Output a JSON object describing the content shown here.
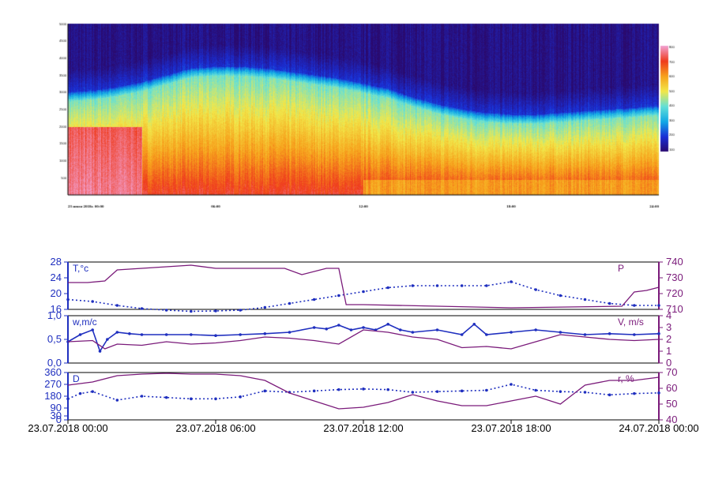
{
  "colors": {
    "T": "#1f2fbf",
    "P": "#7a1a7a",
    "w": "#1f2fbf",
    "V": "#7a1a7a",
    "D": "#1f2fbf",
    "r": "#7a1a7a",
    "axis_left": "#1f2fbf",
    "axis_right": "#7a1a7a"
  },
  "chart_data": [
    {
      "type": "heatmap",
      "title": "",
      "xlabel": "",
      "ylabel": "",
      "x_ticks": [
        "23 июля 2018г. 00:00",
        "06:00",
        "12:00",
        "18:00",
        "24:00"
      ],
      "x_range_hours": [
        0,
        24
      ],
      "y_ticks": [
        500,
        1000,
        1500,
        2000,
        2500,
        3000,
        3500,
        4000,
        4500,
        5000
      ],
      "ylim": [
        0,
        5000
      ],
      "colorbar_ticks": [
        800,
        700,
        600,
        500,
        400,
        300,
        200,
        100
      ],
      "colormap": [
        "#2a0a6e",
        "#1a2fd6",
        "#12a9e6",
        "#63e0d8",
        "#f2e84a",
        "#f7a21c",
        "#ef3b1d",
        "#f2a0cf"
      ],
      "layer_top_m": {
        "hours": [
          0,
          1,
          2,
          3,
          4,
          5,
          6,
          7,
          8,
          9,
          10,
          11,
          12,
          13,
          14,
          15,
          16,
          17,
          18,
          19,
          20,
          21,
          22,
          23,
          24
        ],
        "values": [
          2750,
          2800,
          2900,
          3050,
          3250,
          3450,
          3500,
          3500,
          3450,
          3350,
          3250,
          3150,
          3000,
          2850,
          2600,
          2400,
          2250,
          2150,
          2100,
          2100,
          2150,
          2200,
          2250,
          2300,
          2350
        ]
      }
    },
    {
      "type": "line",
      "panel": "T/P",
      "x_ticks": [
        "23.07.2018 00:00",
        "23.07.2018 06:00",
        "23.07.2018 12:00",
        "23.07.2018 18:00",
        "24.07.2018 00:00"
      ],
      "xlim_hours": [
        0,
        24
      ],
      "left_axis": {
        "label": "T,°c",
        "ticks": [
          16,
          20,
          24,
          28
        ],
        "ylim": [
          16,
          28
        ]
      },
      "right_axis": {
        "label": "P",
        "ticks": [
          710,
          720,
          730,
          740
        ],
        "ylim": [
          710,
          740
        ]
      },
      "series": [
        {
          "name": "T,°c",
          "axis": "left",
          "style": "dotted-markers",
          "x": [
            0,
            1,
            2,
            3,
            4,
            5,
            6,
            7,
            8,
            9,
            10,
            11,
            12,
            13,
            14,
            15,
            16,
            17,
            18,
            19,
            20,
            21,
            22,
            23,
            24
          ],
          "y": [
            18.5,
            18,
            17,
            16.2,
            15.8,
            15.5,
            15.6,
            15.8,
            16.5,
            17.5,
            18.5,
            19.5,
            20.5,
            21.5,
            22,
            22,
            22,
            22,
            23,
            21,
            19.5,
            18.5,
            17.5,
            17,
            17
          ]
        },
        {
          "name": "P",
          "axis": "right",
          "style": "line",
          "x": [
            0,
            0.8,
            1.5,
            2,
            4,
            5,
            6,
            7,
            8.8,
            9.5,
            10.5,
            11,
            11.3,
            12,
            18,
            22.5,
            23,
            23.5,
            24
          ],
          "y": [
            727,
            727,
            728,
            735,
            737,
            738,
            736,
            736,
            736,
            732,
            736,
            736,
            713,
            713,
            711,
            712,
            721,
            722,
            724
          ]
        }
      ]
    },
    {
      "type": "line",
      "panel": "w/V",
      "x_ticks": [
        "23.07.2018 00:00",
        "23.07.2018 06:00",
        "23.07.2018 12:00",
        "23.07.2018 18:00",
        "24.07.2018 00:00"
      ],
      "xlim_hours": [
        0,
        24
      ],
      "left_axis": {
        "label": "w,m/c",
        "ticks": [
          "0,0",
          "0,5",
          "1,0"
        ],
        "ylim": [
          0,
          1
        ]
      },
      "right_axis": {
        "label": "V, m/s",
        "ticks": [
          0,
          1,
          2,
          3,
          4
        ],
        "ylim": [
          0,
          4
        ]
      },
      "series": [
        {
          "name": "w,m/c",
          "axis": "left",
          "style": "line-markers",
          "x": [
            0,
            0.5,
            1,
            1.3,
            1.6,
            2,
            2.5,
            3,
            4,
            5,
            6,
            7,
            8,
            9,
            10,
            10.5,
            11,
            11.5,
            12,
            12.5,
            13,
            13.5,
            14,
            15,
            16,
            16.5,
            17,
            18,
            19,
            20,
            21,
            22,
            23,
            24
          ],
          "y": [
            0.45,
            0.6,
            0.7,
            0.25,
            0.5,
            0.65,
            0.62,
            0.6,
            0.6,
            0.6,
            0.58,
            0.6,
            0.62,
            0.65,
            0.75,
            0.72,
            0.8,
            0.7,
            0.75,
            0.7,
            0.82,
            0.7,
            0.65,
            0.7,
            0.6,
            0.82,
            0.6,
            0.65,
            0.7,
            0.65,
            0.6,
            0.62,
            0.6,
            0.62
          ]
        },
        {
          "name": "V, m/s",
          "axis": "right",
          "style": "line",
          "x": [
            0,
            1,
            1.5,
            2,
            3,
            4,
            5,
            6,
            7,
            8,
            9,
            10,
            11,
            12,
            13,
            14,
            15,
            16,
            17,
            18,
            19,
            20,
            21,
            22,
            23,
            24
          ],
          "y": [
            1.8,
            1.9,
            1.2,
            1.6,
            1.5,
            1.8,
            1.6,
            1.7,
            1.9,
            2.2,
            2.1,
            1.9,
            1.6,
            2.8,
            2.6,
            2.2,
            2.0,
            1.3,
            1.4,
            1.2,
            1.8,
            2.4,
            2.2,
            2.0,
            1.9,
            2.0
          ]
        }
      ]
    },
    {
      "type": "line",
      "panel": "D/r",
      "x_ticks": [
        "23.07.2018 00:00",
        "23.07.2018 06:00",
        "23.07.2018 12:00",
        "23.07.2018 18:00",
        "24.07.2018 00:00"
      ],
      "xlim_hours": [
        0,
        24
      ],
      "left_axis": {
        "label": "D",
        "ticks": [
          0,
          30,
          90,
          180,
          270,
          360
        ],
        "ylim": [
          0,
          360
        ]
      },
      "right_axis": {
        "label": "r, %",
        "ticks": [
          40,
          50,
          60,
          70
        ],
        "ylim": [
          40,
          70
        ]
      },
      "series": [
        {
          "name": "D",
          "axis": "left",
          "style": "dotted-markers",
          "x": [
            0,
            0.5,
            1,
            2,
            3,
            4,
            5,
            6,
            7,
            8,
            9,
            10,
            11,
            12,
            13,
            14,
            15,
            16,
            17,
            18,
            19,
            20,
            21,
            22,
            23,
            24
          ],
          "y": [
            160,
            200,
            215,
            150,
            180,
            170,
            160,
            160,
            175,
            220,
            210,
            220,
            230,
            235,
            230,
            210,
            215,
            220,
            225,
            270,
            225,
            215,
            210,
            190,
            200,
            205
          ]
        },
        {
          "name": "r, %",
          "axis": "right",
          "style": "line",
          "x": [
            0,
            1,
            2,
            3,
            4,
            5,
            6,
            7,
            8,
            9,
            10,
            11,
            12,
            13,
            14,
            15,
            16,
            17,
            18,
            19,
            20,
            21,
            22,
            23,
            24
          ],
          "y": [
            62,
            64,
            68,
            69,
            69.5,
            69,
            69,
            68,
            65,
            57,
            52,
            47,
            48,
            51,
            56,
            52,
            49,
            49,
            52,
            55,
            50,
            62,
            65,
            65,
            67
          ]
        }
      ]
    }
  ]
}
